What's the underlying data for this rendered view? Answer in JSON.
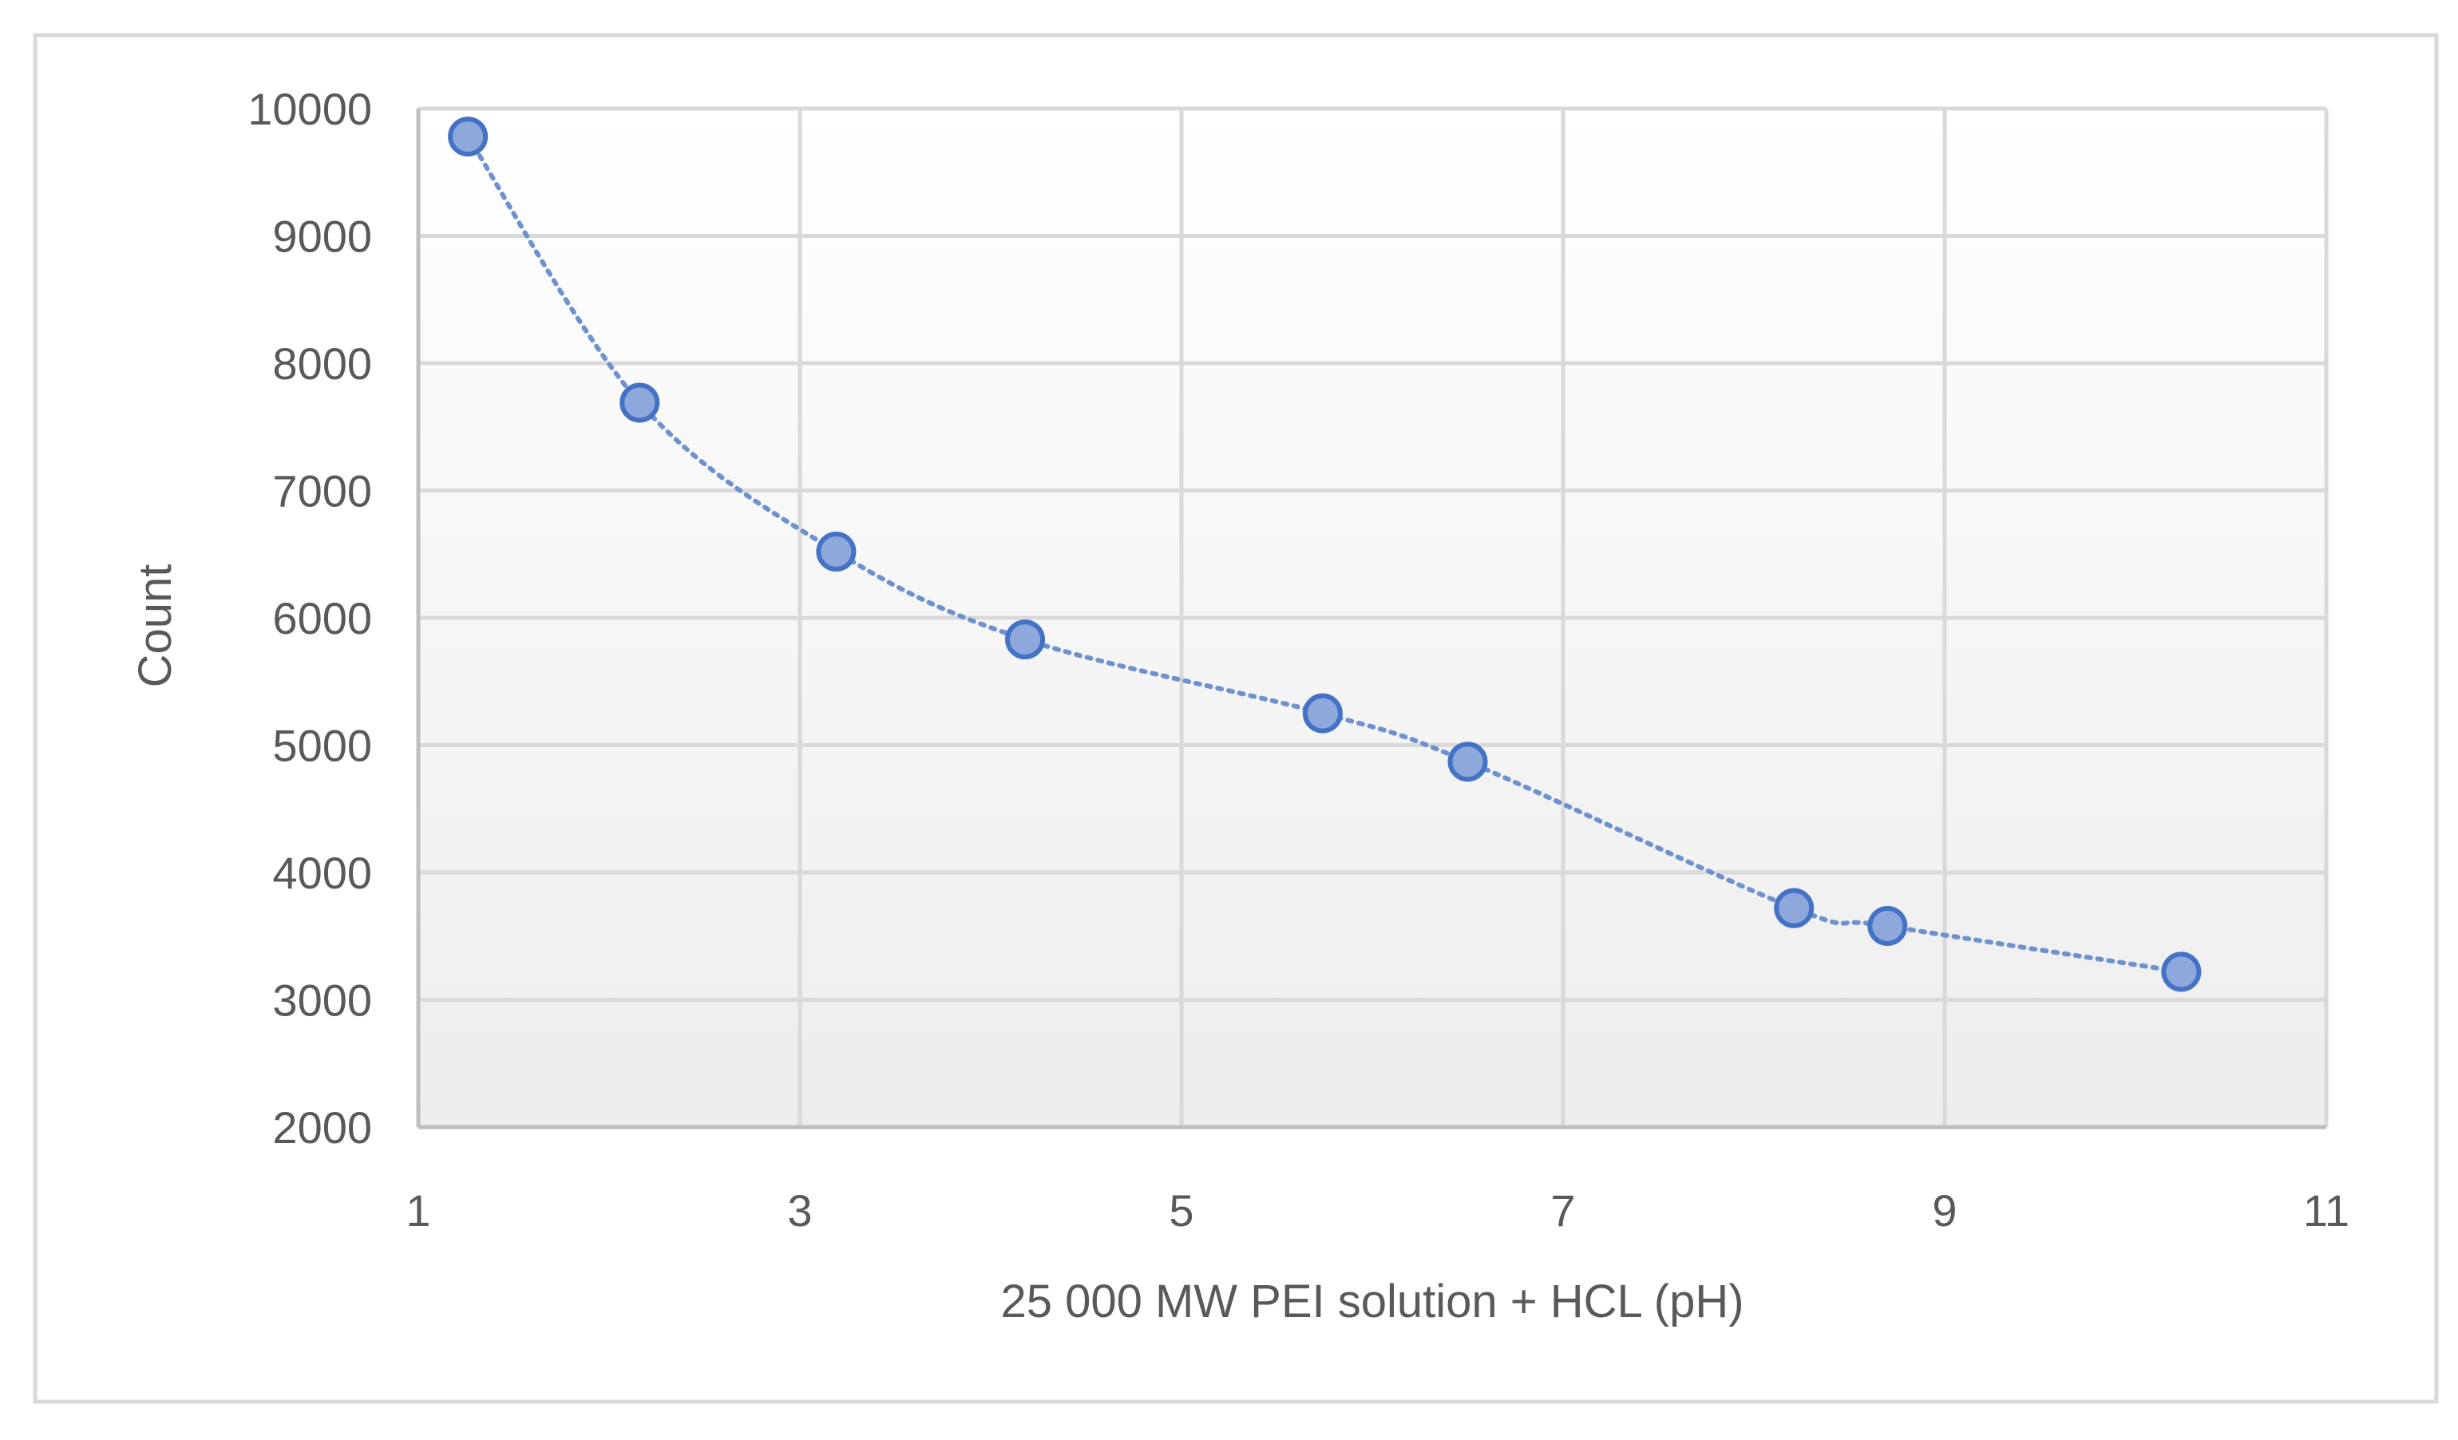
{
  "chart_data": {
    "type": "scatter",
    "title": "",
    "xlabel": "25 000 MW PEI solution + HCL (pH)",
    "ylabel": "Count",
    "xlim": [
      1,
      11
    ],
    "ylim": [
      2000,
      10000
    ],
    "x_ticks": [
      1,
      3,
      5,
      7,
      9,
      11
    ],
    "y_ticks": [
      2000,
      3000,
      4000,
      5000,
      6000,
      7000,
      8000,
      9000,
      10000
    ],
    "x_gridlines": [
      3,
      5,
      7,
      9,
      11
    ],
    "y_gridlines": [
      3000,
      4000,
      5000,
      6000,
      7000,
      8000,
      9000,
      10000
    ],
    "grid": true,
    "line_style": "dotted smooth",
    "series": [
      {
        "name": "Count",
        "x": [
          1.26,
          2.16,
          3.19,
          4.18,
          5.74,
          6.5,
          8.21,
          8.7,
          10.24
        ],
        "y": [
          9780,
          7690,
          6520,
          5830,
          5250,
          4870,
          3720,
          3580,
          3220
        ]
      }
    ],
    "colors": {
      "marker_fill": "#8EA8DB",
      "marker_stroke": "#4472C4",
      "line": "#6F92CF",
      "grid": "#D9D9D9",
      "axis": "#BFBFBF",
      "frame": "#D9D9D9",
      "text": "#595959",
      "plot_gradient_top": "#FFFFFF",
      "plot_gradient_bottom": "#EDEDED"
    }
  }
}
